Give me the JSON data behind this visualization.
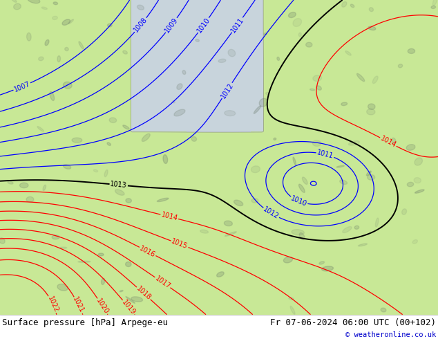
{
  "title_left": "Surface pressure [hPa] Arpege-eu",
  "title_right": "Fr 07-06-2024 06:00 UTC (00+102)",
  "copyright": "© weatheronline.co.uk",
  "bg_color_land": "#c8e896",
  "bg_color_sea": "#c8d4dc",
  "footer_text_color": "#000000",
  "copyright_color": "#0000cc",
  "blue_contour_color": "#0000ff",
  "red_contour_color": "#ff0000",
  "black_contour_color": "#000000",
  "label_fontsize": 7,
  "footer_fontsize": 9
}
